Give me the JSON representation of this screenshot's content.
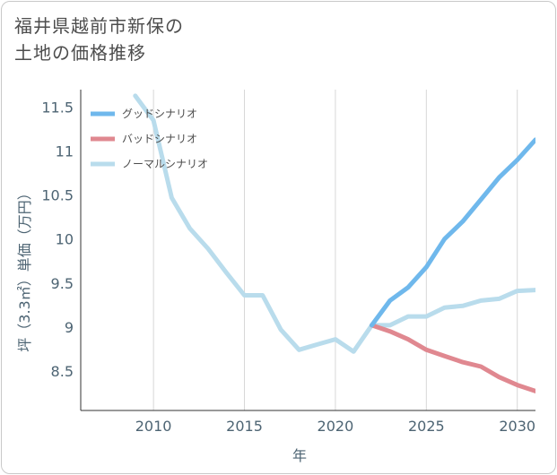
{
  "title": {
    "line1": "福井県越前市新保の",
    "line2": "土地の価格推移"
  },
  "chart_data": {
    "type": "line",
    "xlabel": "年",
    "ylabel": "坪（3.3㎡）単価（万円）",
    "xlim": [
      2006,
      2031
    ],
    "ylim": [
      8.05,
      11.7
    ],
    "x_ticks": [
      2010,
      2015,
      2020,
      2025,
      2030
    ],
    "y_ticks": [
      8.5,
      9,
      9.5,
      10,
      10.5,
      11,
      11.5
    ],
    "grid": "vertical",
    "legend_position": "top-left",
    "series": [
      {
        "name": "グッドシナリオ",
        "color": "#6fb8ec",
        "x": [
          2022,
          2023,
          2024,
          2025,
          2026,
          2027,
          2028,
          2029,
          2030,
          2031
        ],
        "y": [
          9.02,
          9.3,
          9.45,
          9.68,
          10.0,
          10.2,
          10.45,
          10.7,
          10.9,
          11.13
        ]
      },
      {
        "name": "バッドシナリオ",
        "color": "#e08890",
        "x": [
          2022,
          2023,
          2024,
          2025,
          2026,
          2027,
          2028,
          2029,
          2030,
          2031
        ],
        "y": [
          9.02,
          8.95,
          8.86,
          8.74,
          8.67,
          8.6,
          8.55,
          8.43,
          8.34,
          8.27
        ]
      },
      {
        "name": "ノーマルシナリオ",
        "color": "#b9dcec",
        "x": [
          2009,
          2010,
          2011,
          2012,
          2013,
          2014,
          2015,
          2016,
          2017,
          2018,
          2019,
          2020,
          2021,
          2022,
          2023,
          2024,
          2025,
          2026,
          2027,
          2028,
          2029,
          2030,
          2031
        ],
        "y": [
          11.63,
          11.35,
          10.47,
          10.12,
          9.89,
          9.62,
          9.36,
          9.36,
          8.97,
          8.74,
          8.8,
          8.86,
          8.72,
          9.02,
          9.02,
          9.12,
          9.12,
          9.22,
          9.24,
          9.3,
          9.32,
          9.41,
          9.42
        ]
      }
    ]
  }
}
